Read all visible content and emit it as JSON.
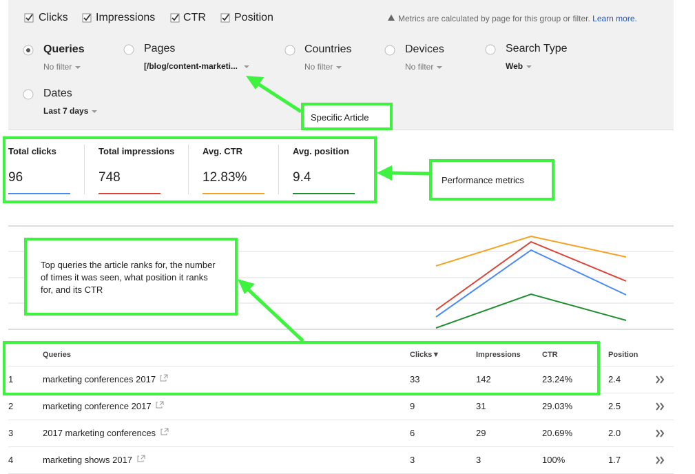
{
  "metric_toggles": [
    "Clicks",
    "Impressions",
    "CTR",
    "Position"
  ],
  "notice": {
    "text": "Metrics are calculated by page for this group or filter.",
    "link": "Learn more."
  },
  "filters": [
    {
      "label": "Queries",
      "value": "No filter"
    },
    {
      "label": "Pages",
      "value": "[/blog/content-marketi..."
    },
    {
      "label": "Countries",
      "value": "No filter"
    },
    {
      "label": "Devices",
      "value": "No filter"
    },
    {
      "label": "Search Type",
      "value": "Web"
    },
    {
      "label": "Dates",
      "value": "Last 7 days"
    }
  ],
  "summary": [
    {
      "label": "Total clicks",
      "value": "96"
    },
    {
      "label": "Total impressions",
      "value": "748"
    },
    {
      "label": "Avg. CTR",
      "value": "12.83%"
    },
    {
      "label": "Avg. position",
      "value": "9.4"
    }
  ],
  "annotations": [
    "Specific Article",
    "Performance metrics",
    "Top queries the article ranks for, the number of times it was seen, what position it ranks for, and its CTR"
  ],
  "table": {
    "headers": [
      "Queries",
      "Clicks▼",
      "Impressions",
      "CTR",
      "Position"
    ],
    "rows": [
      [
        "1",
        "marketing conferences 2017",
        "33",
        "142",
        "23.24%",
        "2.4"
      ],
      [
        "2",
        "marketing conference 2017",
        "9",
        "31",
        "29.03%",
        "2.5"
      ],
      [
        "3",
        "2017 marketing conferences",
        "6",
        "29",
        "20.69%",
        "2.0"
      ],
      [
        "4",
        "marketing shows 2017",
        "3",
        "3",
        "100%",
        "1.7"
      ]
    ]
  }
}
